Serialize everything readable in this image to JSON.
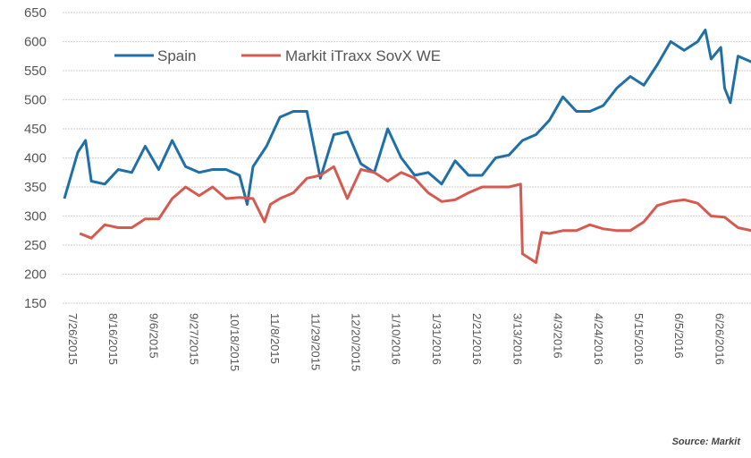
{
  "chart_data": {
    "type": "line",
    "title": "",
    "xlabel": "",
    "ylabel": "",
    "ylim": [
      150,
      650
    ],
    "yticks": [
      "150",
      "200",
      "250",
      "300",
      "350",
      "400",
      "450",
      "500",
      "550",
      "600",
      "650"
    ],
    "xticks": [
      "7/26/2015",
      "8/16/2015",
      "9/6/2015",
      "9/27/2015",
      "10/18/2015",
      "11/8/2015",
      "11/29/2015",
      "12/20/2015",
      "1/10/2016",
      "1/31/2016",
      "2/21/2016",
      "3/13/2016",
      "4/3/2016",
      "4/24/2016",
      "5/15/2016",
      "6/5/2016",
      "6/26/2016"
    ],
    "grid": true,
    "legend_placement": "top-left",
    "source": "Source: Markit",
    "series": [
      {
        "name": "Spain",
        "color": "#1f6fa8",
        "points": [
          [
            "2015-07-26",
            330
          ],
          [
            "2015-08-02",
            410
          ],
          [
            "2015-08-06",
            430
          ],
          [
            "2015-08-09",
            360
          ],
          [
            "2015-08-16",
            355
          ],
          [
            "2015-08-23",
            380
          ],
          [
            "2015-08-30",
            375
          ],
          [
            "2015-09-06",
            420
          ],
          [
            "2015-09-13",
            380
          ],
          [
            "2015-09-20",
            430
          ],
          [
            "2015-09-27",
            385
          ],
          [
            "2015-10-04",
            375
          ],
          [
            "2015-10-11",
            380
          ],
          [
            "2015-10-18",
            380
          ],
          [
            "2015-10-25",
            370
          ],
          [
            "2015-10-29",
            320
          ],
          [
            "2015-11-01",
            385
          ],
          [
            "2015-11-08",
            420
          ],
          [
            "2015-11-15",
            470
          ],
          [
            "2015-11-22",
            480
          ],
          [
            "2015-11-29",
            480
          ],
          [
            "2015-12-06",
            365
          ],
          [
            "2015-12-13",
            440
          ],
          [
            "2015-12-20",
            445
          ],
          [
            "2015-12-27",
            390
          ],
          [
            "2016-01-03",
            375
          ],
          [
            "2016-01-10",
            450
          ],
          [
            "2016-01-17",
            400
          ],
          [
            "2016-01-24",
            370
          ],
          [
            "2016-01-31",
            375
          ],
          [
            "2016-02-07",
            355
          ],
          [
            "2016-02-14",
            395
          ],
          [
            "2016-02-21",
            370
          ],
          [
            "2016-02-28",
            370
          ],
          [
            "2016-03-06",
            400
          ],
          [
            "2016-03-13",
            405
          ],
          [
            "2016-03-20",
            430
          ],
          [
            "2016-03-27",
            440
          ],
          [
            "2016-04-03",
            465
          ],
          [
            "2016-04-10",
            505
          ],
          [
            "2016-04-17",
            480
          ],
          [
            "2016-04-24",
            480
          ],
          [
            "2016-05-01",
            490
          ],
          [
            "2016-05-08",
            520
          ],
          [
            "2016-05-15",
            540
          ],
          [
            "2016-05-22",
            525
          ],
          [
            "2016-05-29",
            560
          ],
          [
            "2016-06-05",
            600
          ],
          [
            "2016-06-12",
            585
          ],
          [
            "2016-06-19",
            600
          ],
          [
            "2016-06-23",
            620
          ],
          [
            "2016-06-26",
            570
          ],
          [
            "2016-07-01",
            590
          ],
          [
            "2016-07-03",
            520
          ],
          [
            "2016-07-06",
            495
          ],
          [
            "2016-07-10",
            575
          ],
          [
            "2016-07-17",
            565
          ]
        ]
      },
      {
        "name": "Markit iTraxx SovX WE",
        "color": "#d65a50",
        "points": [
          [
            "2015-08-03",
            270
          ],
          [
            "2015-08-09",
            262
          ],
          [
            "2015-08-16",
            285
          ],
          [
            "2015-08-23",
            280
          ],
          [
            "2015-08-30",
            280
          ],
          [
            "2015-09-06",
            295
          ],
          [
            "2015-09-13",
            295
          ],
          [
            "2015-09-20",
            330
          ],
          [
            "2015-09-27",
            350
          ],
          [
            "2015-10-04",
            335
          ],
          [
            "2015-10-11",
            350
          ],
          [
            "2015-10-18",
            330
          ],
          [
            "2015-10-25",
            332
          ],
          [
            "2015-11-01",
            330
          ],
          [
            "2015-11-07",
            290
          ],
          [
            "2015-11-10",
            320
          ],
          [
            "2015-11-15",
            330
          ],
          [
            "2015-11-22",
            340
          ],
          [
            "2015-11-29",
            365
          ],
          [
            "2015-12-06",
            370
          ],
          [
            "2015-12-13",
            385
          ],
          [
            "2015-12-20",
            330
          ],
          [
            "2015-12-27",
            380
          ],
          [
            "2016-01-03",
            375
          ],
          [
            "2016-01-10",
            360
          ],
          [
            "2016-01-17",
            375
          ],
          [
            "2016-01-24",
            365
          ],
          [
            "2016-01-31",
            340
          ],
          [
            "2016-02-07",
            325
          ],
          [
            "2016-02-14",
            328
          ],
          [
            "2016-02-21",
            340
          ],
          [
            "2016-02-28",
            350
          ],
          [
            "2016-03-06",
            350
          ],
          [
            "2016-03-13",
            350
          ],
          [
            "2016-03-19",
            355
          ],
          [
            "2016-03-20",
            235
          ],
          [
            "2016-03-27",
            220
          ],
          [
            "2016-03-30",
            272
          ],
          [
            "2016-04-03",
            270
          ],
          [
            "2016-04-10",
            275
          ],
          [
            "2016-04-17",
            275
          ],
          [
            "2016-04-24",
            285
          ],
          [
            "2016-05-01",
            278
          ],
          [
            "2016-05-08",
            275
          ],
          [
            "2016-05-15",
            275
          ],
          [
            "2016-05-22",
            290
          ],
          [
            "2016-05-29",
            318
          ],
          [
            "2016-06-05",
            325
          ],
          [
            "2016-06-12",
            328
          ],
          [
            "2016-06-19",
            322
          ],
          [
            "2016-06-26",
            300
          ],
          [
            "2016-07-03",
            298
          ],
          [
            "2016-07-10",
            280
          ],
          [
            "2016-07-17",
            275
          ]
        ]
      }
    ]
  }
}
